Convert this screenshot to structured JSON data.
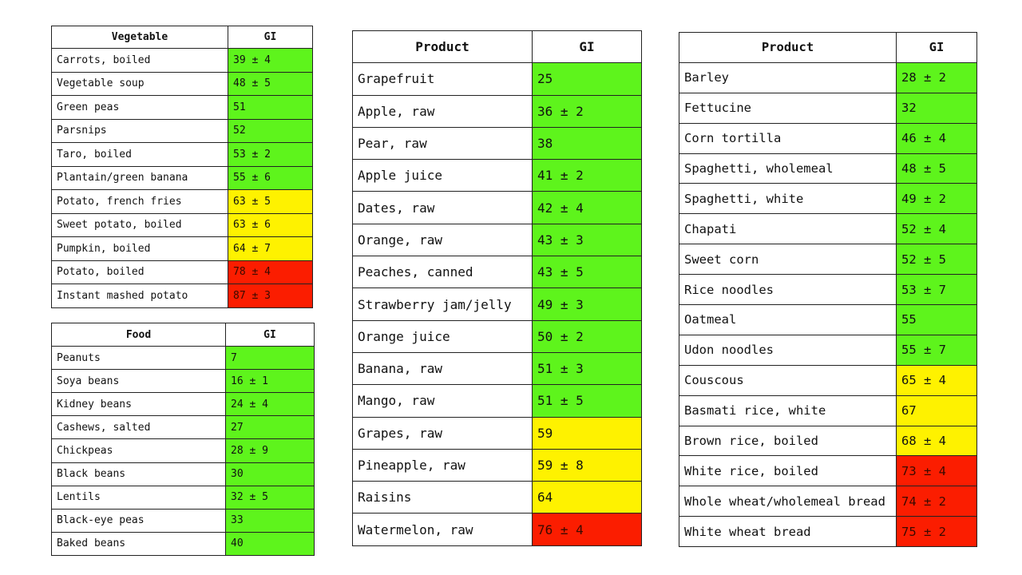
{
  "colors": {
    "green": "#5ef41c",
    "yellow": "#fef200",
    "red": "#fb1d00",
    "text": "#111111",
    "border": "#222222"
  },
  "tables": [
    {
      "id": "veg",
      "headers": [
        "Vegetable",
        "GI"
      ],
      "rows": [
        {
          "name": "Carrots, boiled",
          "gi": "39 ± 4",
          "level": "green"
        },
        {
          "name": "Vegetable soup",
          "gi": "48 ± 5",
          "level": "green"
        },
        {
          "name": "Green peas",
          "gi": "51",
          "level": "green"
        },
        {
          "name": "Parsnips",
          "gi": "52",
          "level": "green"
        },
        {
          "name": "Taro, boiled",
          "gi": "53 ± 2",
          "level": "green"
        },
        {
          "name": "Plantain/green banana",
          "gi": "55 ± 6",
          "level": "green"
        },
        {
          "name": "Potato, french fries",
          "gi": "63 ± 5",
          "level": "yellow"
        },
        {
          "name": "Sweet potato, boiled",
          "gi": "63 ± 6",
          "level": "yellow"
        },
        {
          "name": "Pumpkin, boiled",
          "gi": "64 ± 7",
          "level": "yellow"
        },
        {
          "name": "Potato, boiled",
          "gi": "78 ± 4",
          "level": "red"
        },
        {
          "name": "Instant mashed potato",
          "gi": "87 ± 3",
          "level": "red"
        }
      ]
    },
    {
      "id": "food",
      "headers": [
        "Food",
        "GI"
      ],
      "rows": [
        {
          "name": "Peanuts",
          "gi": "7",
          "level": "green"
        },
        {
          "name": "Soya beans",
          "gi": "16 ± 1",
          "level": "green"
        },
        {
          "name": "Kidney beans",
          "gi": "24 ± 4",
          "level": "green"
        },
        {
          "name": "Cashews, salted",
          "gi": "27",
          "level": "green"
        },
        {
          "name": "Chickpeas",
          "gi": "28 ± 9",
          "level": "green"
        },
        {
          "name": "Black beans",
          "gi": "30",
          "level": "green"
        },
        {
          "name": "Lentils",
          "gi": "32 ± 5",
          "level": "green"
        },
        {
          "name": "Black-eye peas",
          "gi": "33",
          "level": "green"
        },
        {
          "name": "Baked beans",
          "gi": "40",
          "level": "green"
        }
      ]
    },
    {
      "id": "fruit",
      "headers": [
        "Product",
        "GI"
      ],
      "rows": [
        {
          "name": "Grapefruit",
          "gi": "25",
          "level": "green"
        },
        {
          "name": "Apple, raw",
          "gi": "36 ± 2",
          "level": "green"
        },
        {
          "name": "Pear, raw",
          "gi": "38",
          "level": "green"
        },
        {
          "name": "Apple juice",
          "gi": "41 ± 2",
          "level": "green"
        },
        {
          "name": "Dates, raw",
          "gi": "42 ± 4",
          "level": "green"
        },
        {
          "name": "Orange, raw",
          "gi": "43 ± 3",
          "level": "green"
        },
        {
          "name": "Peaches, canned",
          "gi": "43 ± 5",
          "level": "green"
        },
        {
          "name": "Strawberry jam/jelly",
          "gi": "49 ± 3",
          "level": "green"
        },
        {
          "name": "Orange juice",
          "gi": "50 ± 2",
          "level": "green"
        },
        {
          "name": "Banana, raw",
          "gi": "51 ± 3",
          "level": "green"
        },
        {
          "name": "Mango, raw",
          "gi": "51 ± 5",
          "level": "green"
        },
        {
          "name": "Grapes, raw",
          "gi": "59",
          "level": "yellow"
        },
        {
          "name": "Pineapple, raw",
          "gi": "59 ± 8",
          "level": "yellow"
        },
        {
          "name": "Raisins",
          "gi": "64",
          "level": "yellow"
        },
        {
          "name": "Watermelon, raw",
          "gi": "76 ± 4",
          "level": "red"
        }
      ]
    },
    {
      "id": "grain",
      "headers": [
        "Product",
        "GI"
      ],
      "rows": [
        {
          "name": "Barley",
          "gi": "28 ± 2",
          "level": "green"
        },
        {
          "name": "Fettucine",
          "gi": "32",
          "level": "green"
        },
        {
          "name": "Corn tortilla",
          "gi": "46 ± 4",
          "level": "green"
        },
        {
          "name": "Spaghetti, wholemeal",
          "gi": "48 ± 5",
          "level": "green"
        },
        {
          "name": "Spaghetti, white",
          "gi": "49 ± 2",
          "level": "green"
        },
        {
          "name": "Chapati",
          "gi": "52 ± 4",
          "level": "green"
        },
        {
          "name": "Sweet corn",
          "gi": "52 ± 5",
          "level": "green"
        },
        {
          "name": "Rice noodles",
          "gi": "53 ± 7",
          "level": "green"
        },
        {
          "name": "Oatmeal",
          "gi": "55",
          "level": "green"
        },
        {
          "name": "Udon noodles",
          "gi": "55 ± 7",
          "level": "green"
        },
        {
          "name": "Couscous",
          "gi": "65 ± 4",
          "level": "yellow"
        },
        {
          "name": "Basmati rice, white",
          "gi": "67",
          "level": "yellow"
        },
        {
          "name": "Brown rice, boiled",
          "gi": "68 ± 4",
          "level": "yellow"
        },
        {
          "name": "White rice, boiled",
          "gi": "73 ± 4",
          "level": "red"
        },
        {
          "name": "Whole wheat/wholemeal bread",
          "gi": "74 ± 2",
          "level": "red"
        },
        {
          "name": "White wheat bread",
          "gi": "75 ± 2",
          "level": "red"
        }
      ]
    }
  ]
}
